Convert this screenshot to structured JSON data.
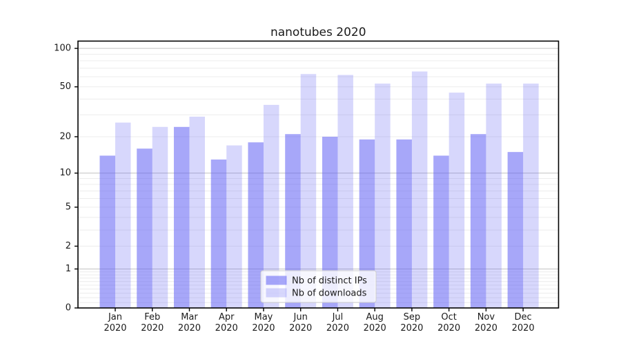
{
  "title": "nanotubes 2020",
  "chart_data": {
    "type": "bar",
    "title": "nanotubes 2020",
    "categories": [
      "Jan",
      "Feb",
      "Mar",
      "Apr",
      "May",
      "Jun",
      "Jul",
      "Aug",
      "Sep",
      "Oct",
      "Nov",
      "Dec"
    ],
    "year_label": "2020",
    "series": [
      {
        "name": "Nb of distinct IPs",
        "color": "#5f5ff4",
        "opacity": 0.55,
        "values": [
          14,
          16,
          24,
          13,
          18,
          21,
          20,
          19,
          19,
          14,
          21,
          15
        ]
      },
      {
        "name": "Nb of downloads",
        "color": "#5f5ff4",
        "opacity": 0.25,
        "values": [
          26,
          24,
          29,
          17,
          36,
          63,
          62,
          53,
          66,
          45,
          53,
          53
        ]
      }
    ],
    "xlabel": "",
    "ylabel": "",
    "y_scale": "log1p",
    "y_ticks": [
      0,
      1,
      2,
      5,
      10,
      20,
      50,
      100
    ],
    "y_major_grid": [
      1,
      10,
      100
    ],
    "ylim": [
      0,
      114
    ],
    "grid": true,
    "legend_position": "lower-center"
  },
  "colors": {
    "major_grid": "#c8c8c8",
    "minor_grid": "#ececec",
    "spine": "#000000",
    "legend_border": "#cccccc",
    "legend_fill": "rgba(255,255,255,0.8)"
  }
}
